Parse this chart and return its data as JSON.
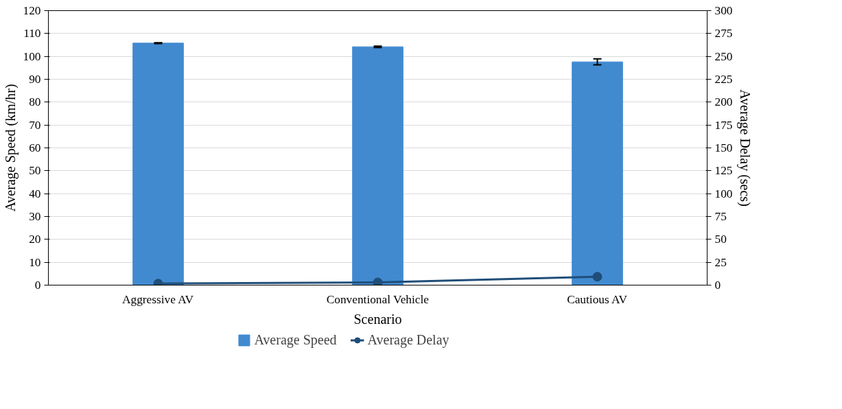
{
  "chart_data": {
    "type": "bar",
    "categories": [
      "Aggressive AV",
      "Conventional Vehicle",
      "Cautious AV"
    ],
    "xlabel": "Scenario",
    "ylabel": "Average Speed (km/hr)",
    "y2label": "Average Delay (secs)",
    "series": [
      {
        "name": "Average Speed",
        "color": "#418ad0",
        "values": [
          105.8,
          104.2,
          97.6
        ],
        "errors": [
          0.2,
          0.3,
          1.3
        ]
      },
      {
        "name": "Average Delay",
        "type": "line",
        "axis": "y2",
        "color": "#1f4e79",
        "values": [
          1.7,
          3,
          9.2
        ],
        "marker": "circle"
      }
    ],
    "ylim": [
      0,
      120
    ],
    "yticks": [
      0,
      10,
      20,
      30,
      40,
      50,
      60,
      70,
      80,
      90,
      100,
      110,
      120
    ],
    "y2lim": [
      0,
      300
    ],
    "y2ticks": [
      0,
      25,
      50,
      75,
      100,
      125,
      150,
      175,
      200,
      225,
      250,
      275,
      300
    ],
    "grid": "y",
    "legend": "bottom"
  }
}
